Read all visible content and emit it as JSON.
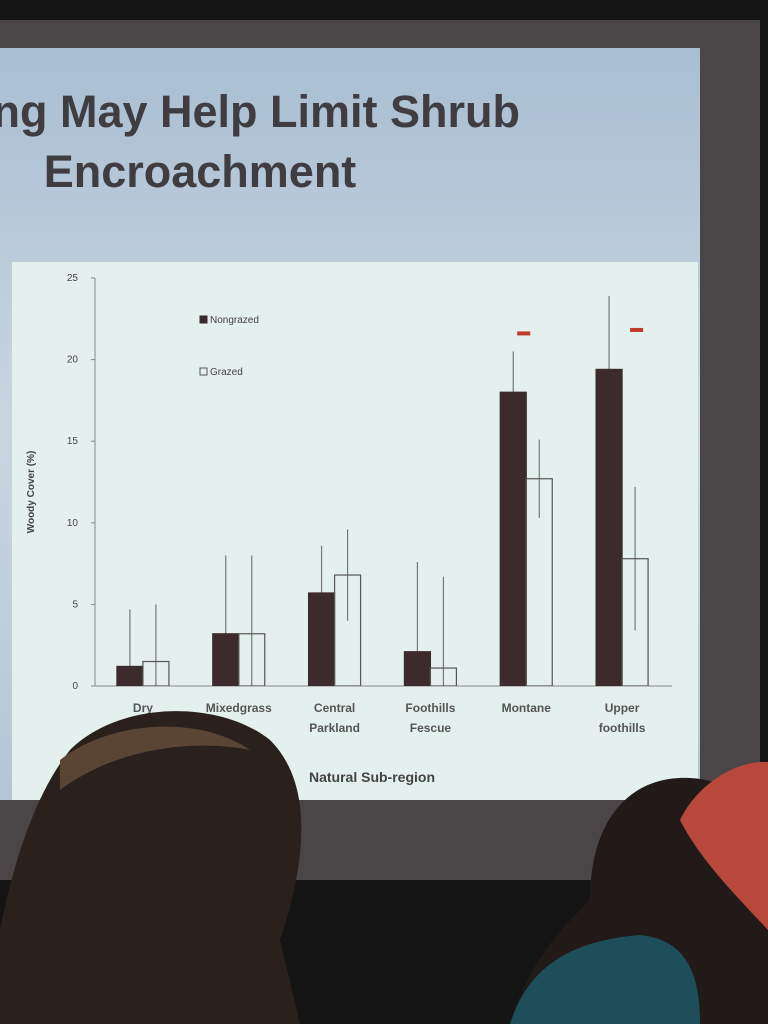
{
  "chart_data": {
    "type": "bar",
    "title": "Grazing May Help Limit Shrub Encroachment",
    "xlabel": "Natural Sub-region",
    "ylabel": "Woody Cover (%)",
    "categories": [
      "Dry Mixedgrass",
      "Mixedgrass",
      "Central Parkland",
      "Foothills Fescue",
      "Montane",
      "Upper foothills"
    ],
    "series": [
      {
        "name": "Nongrazed",
        "color": "#3d2a2c",
        "values": [
          1.2,
          3.2,
          5.7,
          2.1,
          18.0,
          19.4
        ],
        "errors": [
          3.5,
          4.8,
          2.9,
          5.5,
          2.5,
          4.5
        ]
      },
      {
        "name": "Grazed",
        "color": "#eef6f5",
        "values": [
          1.5,
          3.2,
          6.8,
          1.1,
          12.7,
          7.8
        ],
        "errors": [
          3.5,
          4.8,
          2.8,
          5.6,
          2.4,
          4.4
        ]
      }
    ],
    "significant": [
      false,
      false,
      false,
      false,
      true,
      true
    ],
    "significance_color": "#c0392b",
    "ylim": [
      0,
      25
    ],
    "yticks": [
      0,
      5,
      10,
      15,
      20,
      25
    ],
    "legend": "top-left"
  }
}
